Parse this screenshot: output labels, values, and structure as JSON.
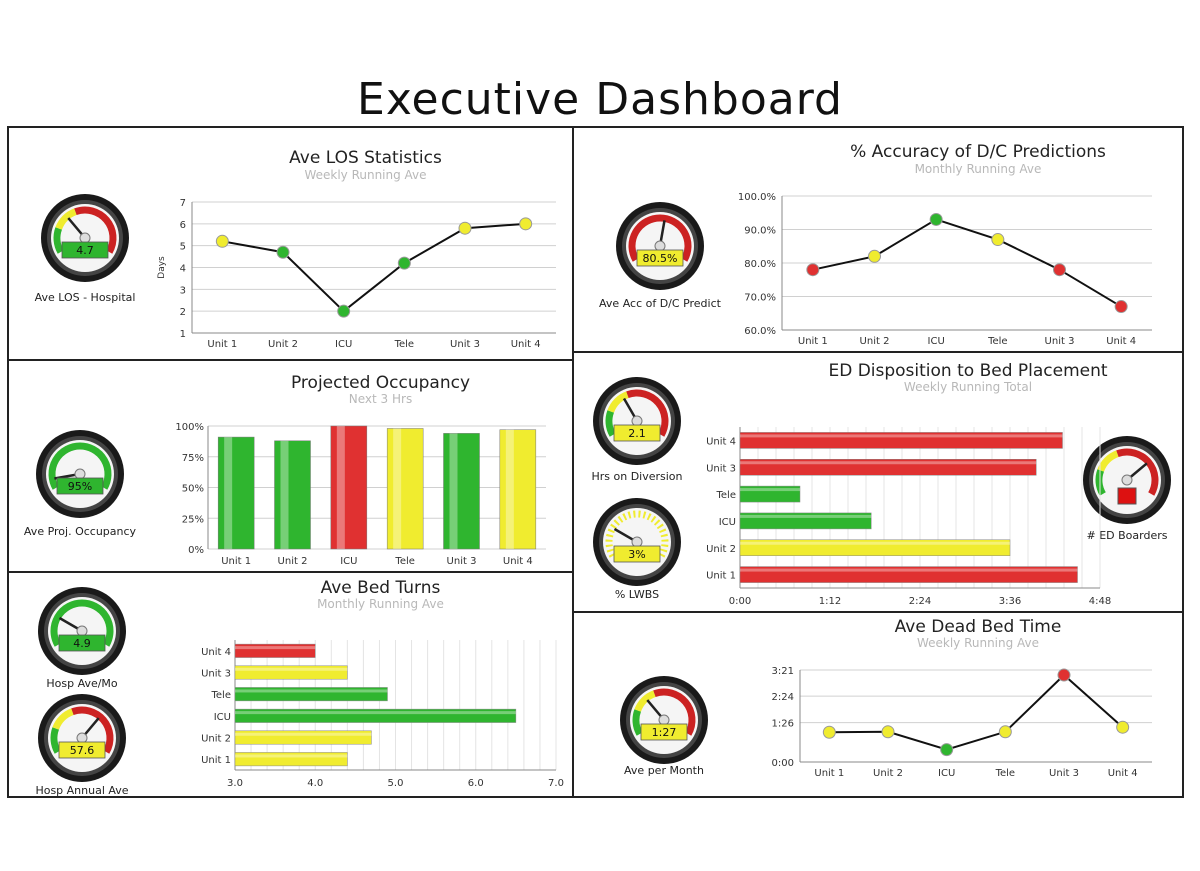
{
  "title": "Executive Dashboard",
  "colors": {
    "green": "#2fb52f",
    "red": "#e03131",
    "yellow": "#f0ec2f",
    "grid": "#d0d0d0"
  },
  "panels": {
    "los": {
      "title": "Ave LOS Statistics",
      "subtitle": "Weekly Running Ave",
      "gauge": {
        "label": "Ave LOS - Hospital",
        "value": "4.7"
      }
    },
    "accuracy": {
      "title": "% Accuracy of D/C Predictions",
      "subtitle": "Monthly Running Ave",
      "gauge": {
        "label": "Ave Acc of D/C Predict",
        "value": "80.5%"
      }
    },
    "occupancy": {
      "title": "Projected Occupancy",
      "subtitle": "Next 3 Hrs",
      "gauge": {
        "label": "Ave Proj. Occupancy",
        "value": "95%"
      }
    },
    "ed": {
      "title": "ED Disposition to Bed Placement",
      "subtitle": "Weekly Running Total",
      "gauges": [
        {
          "label": "Hrs on Diversion",
          "value": "2.1"
        },
        {
          "label": "% LWBS",
          "value": "3%"
        },
        {
          "label": "# ED Boarders",
          "value": ""
        }
      ]
    },
    "turns": {
      "title": "Ave Bed Turns",
      "subtitle": "Monthly Running Ave",
      "gauges": [
        {
          "label": "Hosp Ave/Mo",
          "value": "4.9"
        },
        {
          "label": "Hosp Annual Ave",
          "value": "57.6"
        }
      ]
    },
    "dead": {
      "title": "Ave Dead Bed Time",
      "subtitle": "Weekly Running Ave",
      "gauge": {
        "label": "Ave per Month",
        "value": "1:27"
      }
    }
  },
  "chart_data": [
    {
      "id": "los",
      "type": "line",
      "title": "Ave LOS Statistics",
      "subtitle": "Weekly Running Ave",
      "categories": [
        "Unit 1",
        "Unit 2",
        "ICU",
        "Tele",
        "Unit 3",
        "Unit 4"
      ],
      "values": [
        5.2,
        4.7,
        2.0,
        4.2,
        5.8,
        6.0
      ],
      "point_colors": [
        "yellow",
        "green",
        "green",
        "green",
        "yellow",
        "yellow"
      ],
      "ylabel": "Days",
      "ylim": [
        1,
        7
      ],
      "yticks": [
        "1",
        "2",
        "3",
        "4",
        "5",
        "6",
        "7"
      ],
      "grid": true
    },
    {
      "id": "accuracy",
      "type": "line",
      "title": "% Accuracy of D/C Predictions",
      "subtitle": "Monthly Running Ave",
      "categories": [
        "Unit 1",
        "Unit 2",
        "ICU",
        "Tele",
        "Unit 3",
        "Unit 4"
      ],
      "values": [
        78,
        82,
        93,
        87,
        78,
        67
      ],
      "point_colors": [
        "red",
        "yellow",
        "green",
        "yellow",
        "red",
        "red"
      ],
      "ylim": [
        60,
        100
      ],
      "yticks": [
        "60.0%",
        "70.0%",
        "80.0%",
        "90.0%",
        "100.0%"
      ],
      "grid": true
    },
    {
      "id": "occupancy",
      "type": "bar",
      "title": "Projected Occupancy",
      "subtitle": "Next 3 Hrs",
      "categories": [
        "Unit 1",
        "Unit 2",
        "ICU",
        "Tele",
        "Unit 3",
        "Unit 4"
      ],
      "values": [
        91,
        88,
        100,
        98,
        94,
        97
      ],
      "bar_colors": [
        "green",
        "green",
        "red",
        "yellow",
        "green",
        "yellow"
      ],
      "ylim": [
        0,
        100
      ],
      "yticks": [
        "0%",
        "25%",
        "50%",
        "75%",
        "100%"
      ],
      "grid": true
    },
    {
      "id": "ed",
      "type": "bar",
      "orientation": "horizontal",
      "title": "ED Disposition to Bed Placement",
      "subtitle": "Weekly Running Total",
      "categories": [
        "Unit 4",
        "Unit 3",
        "Tele",
        "ICU",
        "Unit 2",
        "Unit 1"
      ],
      "values_hours": [
        4.3,
        3.95,
        0.8,
        1.75,
        3.6,
        4.5
      ],
      "bar_colors": [
        "red",
        "red",
        "green",
        "green",
        "yellow",
        "red"
      ],
      "xlim": [
        0,
        4.8
      ],
      "xticks": [
        "0:00",
        "1:12",
        "2:24",
        "3:36",
        "4:48"
      ],
      "grid": true
    },
    {
      "id": "turns",
      "type": "bar",
      "orientation": "horizontal",
      "title": "Ave Bed Turns",
      "subtitle": "Monthly Running Ave",
      "categories": [
        "Unit 4",
        "Unit 3",
        "Tele",
        "ICU",
        "Unit 2",
        "Unit 1"
      ],
      "values": [
        4.0,
        4.4,
        4.9,
        6.5,
        4.7,
        4.4
      ],
      "bar_colors": [
        "red",
        "yellow",
        "green",
        "green",
        "yellow",
        "yellow"
      ],
      "xlim": [
        3,
        7
      ],
      "xticks": [
        "3.0",
        "4.0",
        "5.0",
        "6.0",
        "7.0"
      ],
      "grid": true
    },
    {
      "id": "dead",
      "type": "line",
      "title": "Ave Dead Bed Time",
      "subtitle": "Weekly Running Ave",
      "categories": [
        "Unit 1",
        "Unit 2",
        "ICU",
        "Tele",
        "Unit 3",
        "Unit 4"
      ],
      "values_minutes": [
        65,
        66,
        27,
        66,
        190,
        76
      ],
      "point_colors": [
        "yellow",
        "yellow",
        "green",
        "yellow",
        "red",
        "yellow"
      ],
      "ylim": [
        0,
        201
      ],
      "yticks": [
        "0:00",
        "1:26",
        "2:24",
        "3:21"
      ],
      "grid": true
    }
  ]
}
